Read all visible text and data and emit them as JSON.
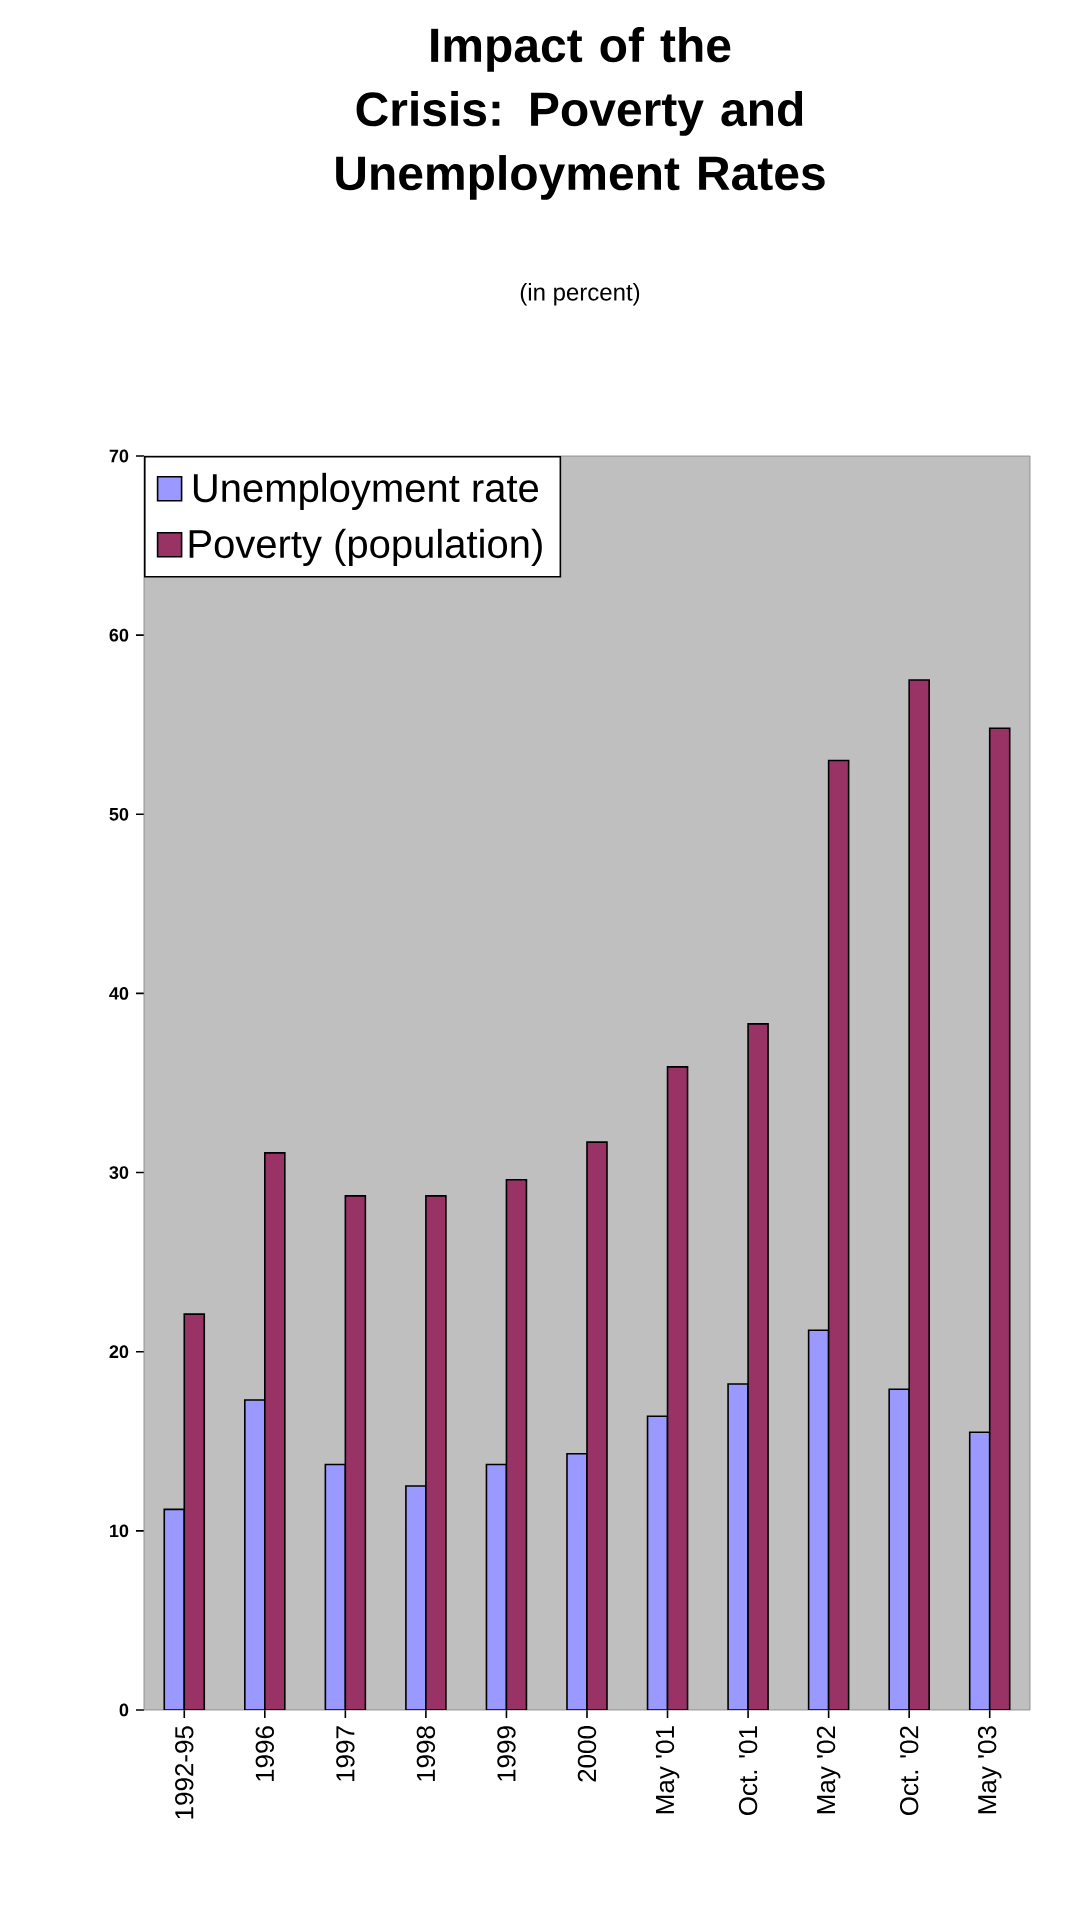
{
  "chart_data": {
    "type": "bar",
    "title": "Impact of the Crisis: Poverty and Unemployment Rates",
    "subtitle": "(in percent)",
    "categories": [
      "1992-95",
      "1996",
      "1997",
      "1998",
      "1999",
      "2000",
      "May '01",
      "Oct. '01",
      "May '02",
      "Oct. '02",
      "May '03"
    ],
    "series": [
      {
        "name": "Unemployment rate",
        "color": "#9999ff",
        "values": [
          11.2,
          17.3,
          13.7,
          12.5,
          13.7,
          14.3,
          16.4,
          18.2,
          21.2,
          17.9,
          15.5
        ]
      },
      {
        "name": "Poverty (population)",
        "color": "#993366",
        "values": [
          22.1,
          31.1,
          28.7,
          28.7,
          29.6,
          31.7,
          35.9,
          38.3,
          53.0,
          57.5,
          54.8
        ]
      }
    ],
    "ylim": [
      0,
      70
    ],
    "yticks": [
      0,
      10,
      20,
      30,
      40,
      50,
      60,
      70
    ],
    "grid": false,
    "legend": "top left"
  }
}
